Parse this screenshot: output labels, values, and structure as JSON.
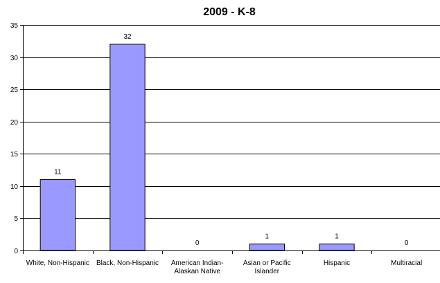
{
  "chart_data": {
    "type": "bar",
    "title": "2009 - K-8",
    "categories": [
      [
        "White, Non-Hispanic"
      ],
      [
        "Black, Non-Hispanic"
      ],
      [
        "American Indian-",
        "Alaskan Native"
      ],
      [
        "Asian or Pacific",
        "Islander"
      ],
      [
        "Hispanic"
      ],
      [
        "Multiracial"
      ]
    ],
    "values": [
      11,
      32,
      0,
      1,
      1,
      0
    ],
    "data_labels": [
      "11",
      "32",
      "0",
      "1",
      "1",
      "0"
    ],
    "ylim": [
      0,
      35
    ],
    "yticks": [
      0,
      5,
      10,
      15,
      20,
      25,
      30,
      35
    ],
    "ytick_labels": [
      "0",
      "5",
      "10",
      "15",
      "20",
      "25",
      "30",
      "35"
    ],
    "xlabel": "",
    "ylabel": "",
    "grid": true,
    "legend": false,
    "colors": {
      "bar": "#9999ff",
      "bar_stroke": "#000000",
      "grid": "#000000"
    }
  }
}
